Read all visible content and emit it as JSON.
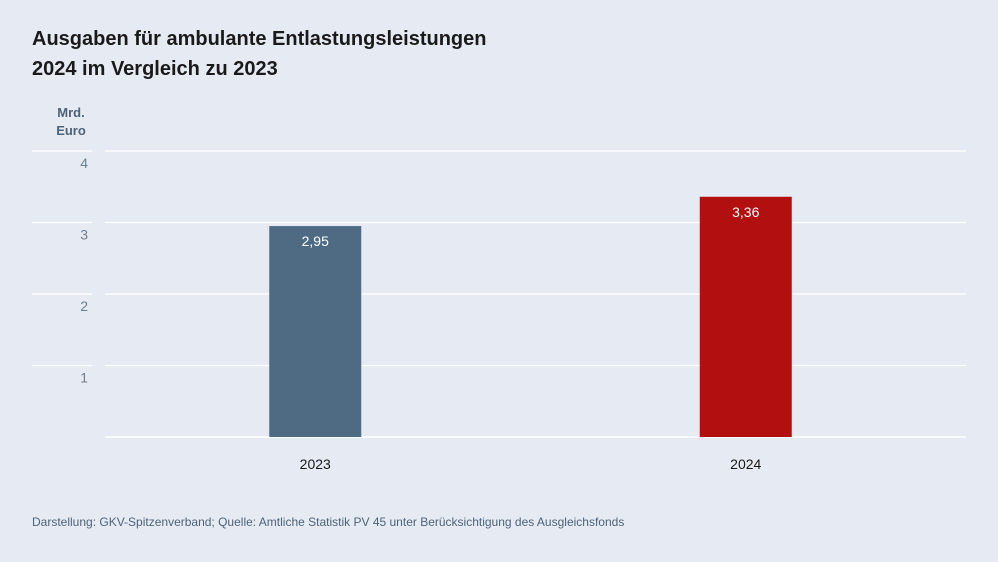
{
  "title_line1": "Ausgaben für ambulante Entlastungsleistungen",
  "title_line2": "2024 im Vergleich zu 2023",
  "unit_line1": "Mrd.",
  "unit_line2": "Euro",
  "source": "Darstellung: GKV-Spitzenverband; Quelle: Amtliche Statistik PV 45 unter Berücksichtigung des Ausgleichsfonds",
  "chart_data": {
    "type": "bar",
    "title": "Ausgaben für ambulante Entlastungsleistungen 2024 im Vergleich zu 2023",
    "ylabel": "Mrd. Euro",
    "xlabel": "",
    "categories": [
      "2023",
      "2024"
    ],
    "values": [
      2.95,
      3.36
    ],
    "value_labels": [
      "2,95",
      "3,36"
    ],
    "colors": [
      "#4f6b84",
      "#b21010"
    ],
    "ylim": [
      0,
      4
    ],
    "yticks": [
      1,
      2,
      3,
      4
    ],
    "grid": true
  }
}
